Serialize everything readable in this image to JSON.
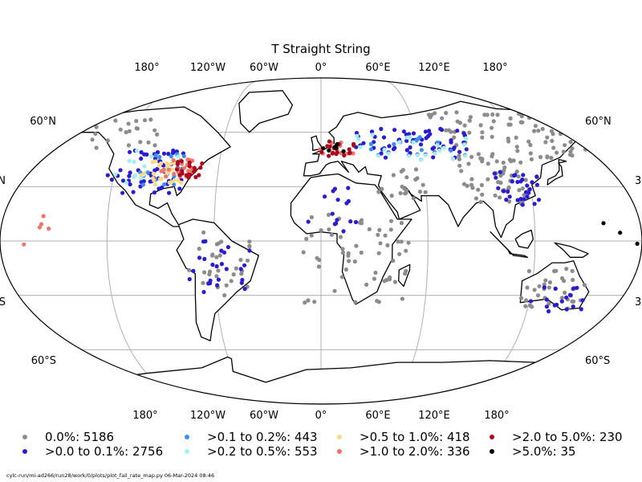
{
  "chart_data": {
    "type": "scatter",
    "projection": "Robinson (global, coastlines)",
    "title": "T Straight String",
    "grid": true,
    "xticks_top": [
      "180°",
      "120°W",
      "60°W",
      "0°",
      "60°E",
      "120°E",
      "180°"
    ],
    "xticks_bottom": [
      "180°",
      "120°W",
      "60°W",
      "0°",
      "60°E",
      "120°E",
      "180°"
    ],
    "yticks_left": [
      "60°N",
      "N",
      "S",
      "60°S"
    ],
    "yticks_right": [
      "60°N",
      "3",
      "3",
      "60°S"
    ],
    "legend_position": "bottom",
    "series": [
      {
        "name": "0.0%: 5186",
        "color": "#8c8c8c"
      },
      {
        "name": ">0.0 to 0.1%: 2756",
        "color": "#2a1ccf"
      },
      {
        "name": ">0.1 to 0.2%: 443",
        "color": "#3b8fe8"
      },
      {
        "name": ">0.2 to 0.5%: 553",
        "color": "#9ff0f5"
      },
      {
        "name": ">0.5 to 1.0%: 418",
        "color": "#fbd98a"
      },
      {
        "name": ">1.0 to 2.0%: 336",
        "color": "#f07468"
      },
      {
        "name": ">2.0 to 5.0%: 230",
        "color": "#a80a1e"
      },
      {
        "name": ">5.0%: 35",
        "color": "#000000"
      }
    ]
  },
  "footer": "cylc-run/mi-ad266/run28/work/0/plots/plot_fail_rate_map.py   06-Mar-2024 08:46"
}
